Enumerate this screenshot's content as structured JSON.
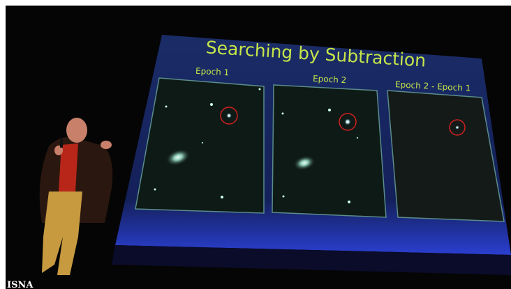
{
  "slide": {
    "title": "Searching by Subtraction",
    "panels": [
      {
        "label": "Epoch 1"
      },
      {
        "label": "Epoch 2"
      },
      {
        "label": "Epoch 2 - Epoch 1"
      }
    ]
  },
  "watermark": "ISNA"
}
